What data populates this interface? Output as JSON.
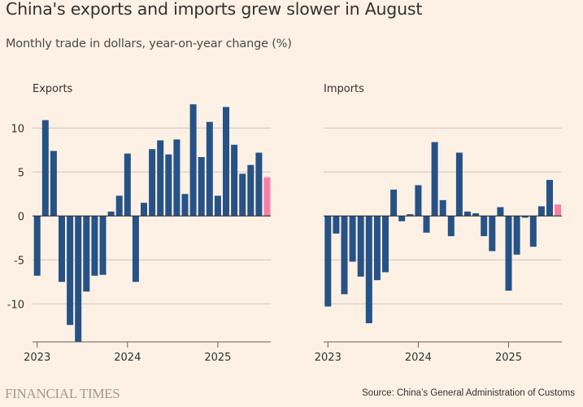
{
  "header": {
    "title": "China's exports and imports grew slower in August",
    "subtitle": "Monthly trade in dollars, year-on-year change (%)"
  },
  "footer": {
    "logo": "FINANCIAL TIMES",
    "source": "Source: China’s General Administration of Customs"
  },
  "colors": {
    "background": "#fdf1e5",
    "bar": "#265286",
    "highlight": "#f77fa7",
    "grid": "#cfc3b8",
    "axis": "#66605c"
  },
  "chart_data": [
    {
      "type": "bar",
      "title": "Exports",
      "ylim": [
        -14.5,
        13.5
      ],
      "yticks": [
        "10",
        "5",
        "0",
        "-5",
        "-10"
      ],
      "ytick_values": [
        10,
        5,
        0,
        -5,
        -10
      ],
      "grid": true,
      "xtick_labels": [
        "2023",
        "2024",
        "2025"
      ],
      "xtick_index": [
        0,
        11,
        22
      ],
      "x": [
        "Jan-Feb 2023",
        "Mar 2023",
        "Apr 2023",
        "May 2023",
        "Jun 2023",
        "Jul 2023",
        "Aug 2023",
        "Sep 2023",
        "Oct 2023",
        "Nov 2023",
        "Dec 2023",
        "Jan-Feb 2024",
        "Mar 2024",
        "Apr 2024",
        "May 2024",
        "Jun 2024",
        "Jul 2024",
        "Aug 2024",
        "Sep 2024",
        "Oct 2024",
        "Nov 2024",
        "Dec 2024",
        "Jan-Feb 2025",
        "Mar 2025",
        "Apr 2025",
        "May 2025",
        "Jun 2025",
        "Jul 2025",
        "Aug 2025"
      ],
      "values": [
        -6.8,
        10.9,
        7.4,
        -7.5,
        -12.4,
        -14.3,
        -8.6,
        -6.8,
        -6.7,
        0.5,
        2.3,
        7.1,
        -7.5,
        1.5,
        7.6,
        8.6,
        7.0,
        8.7,
        2.5,
        12.7,
        6.7,
        10.7,
        2.3,
        12.4,
        8.1,
        4.8,
        5.8,
        7.2,
        4.4
      ],
      "highlight": "Aug 2025"
    },
    {
      "type": "bar",
      "title": "Imports",
      "ylim": [
        -14.5,
        13.5
      ],
      "ytick_values": [
        10,
        5,
        0,
        -5,
        -10
      ],
      "grid": true,
      "xtick_labels": [
        "2023",
        "2024",
        "2025"
      ],
      "xtick_index": [
        0,
        11,
        22
      ],
      "x": [
        "Jan-Feb 2023",
        "Mar 2023",
        "Apr 2023",
        "May 2023",
        "Jun 2023",
        "Jul 2023",
        "Aug 2023",
        "Sep 2023",
        "Oct 2023",
        "Nov 2023",
        "Dec 2023",
        "Jan-Feb 2024",
        "Mar 2024",
        "Apr 2024",
        "May 2024",
        "Jun 2024",
        "Jul 2024",
        "Aug 2024",
        "Sep 2024",
        "Oct 2024",
        "Nov 2024",
        "Dec 2024",
        "Jan-Feb 2025",
        "Mar 2025",
        "Apr 2025",
        "May 2025",
        "Jun 2025",
        "Jul 2025",
        "Aug 2025"
      ],
      "values": [
        -10.3,
        -2.0,
        -8.9,
        -5.2,
        -6.9,
        -12.2,
        -7.3,
        -6.4,
        3.0,
        -0.6,
        0.2,
        3.5,
        -1.9,
        8.4,
        1.8,
        -2.3,
        7.2,
        0.5,
        0.3,
        -2.3,
        -4.0,
        1.0,
        -8.5,
        -4.4,
        -0.2,
        -3.5,
        1.1,
        4.1,
        1.3
      ],
      "highlight": "Aug 2025"
    }
  ]
}
